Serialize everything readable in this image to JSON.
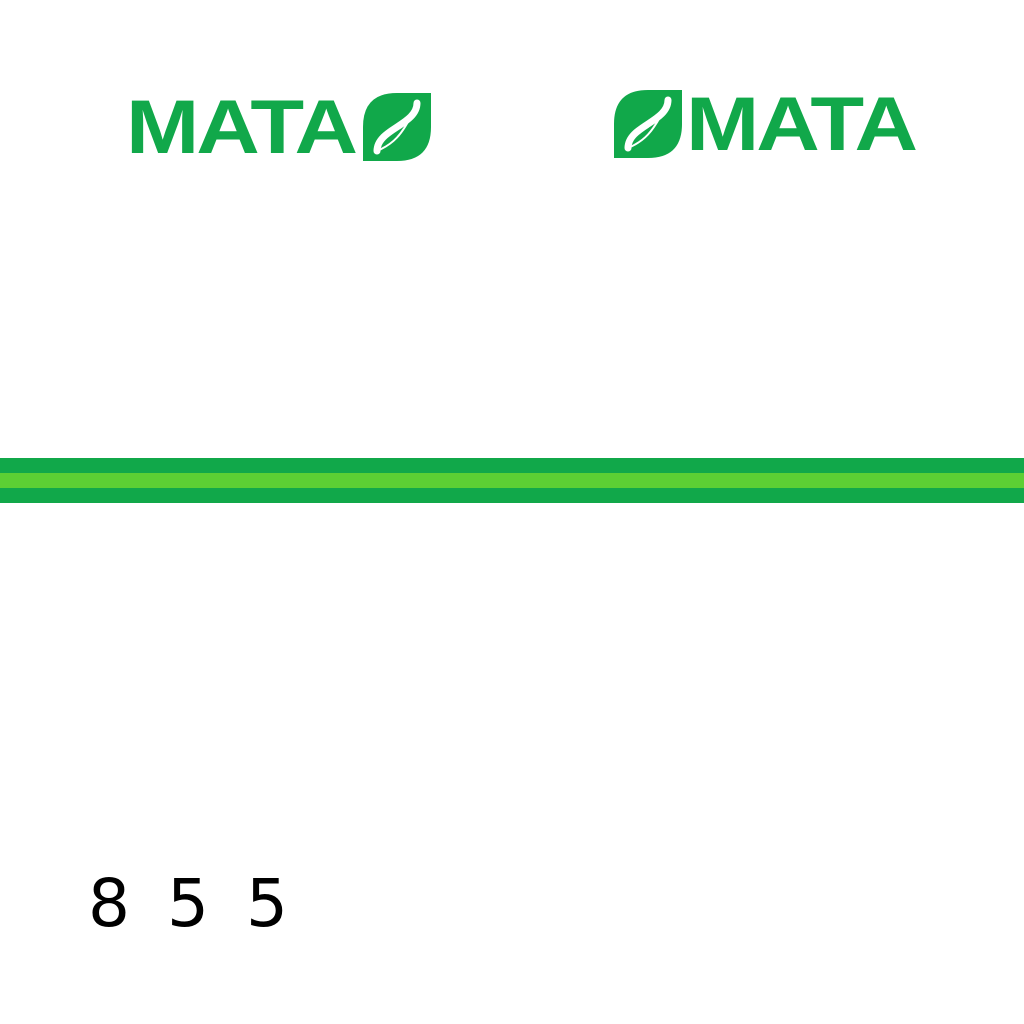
{
  "logos": {
    "left": {
      "text": "MATA",
      "icon": "leaf-icon"
    },
    "right": {
      "text": "MATA",
      "icon": "leaf-icon"
    }
  },
  "colors": {
    "brand_green": "#11a84a",
    "light_green": "#5ccf34",
    "background": "#ffffff",
    "number_text": "#000000"
  },
  "fleet_number": "8 5 5"
}
